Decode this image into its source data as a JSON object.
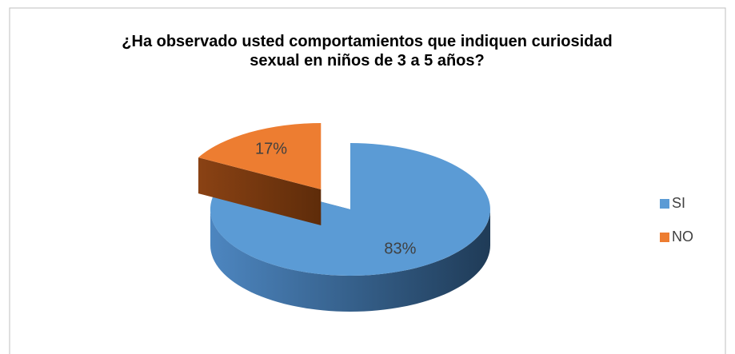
{
  "chart_data": {
    "type": "pie",
    "title": "¿Ha observado usted comportamientos que indiquen curiosidad sexual en niños de 3 a 5 años?",
    "categories": [
      "SI",
      "NO"
    ],
    "values": [
      83,
      17
    ],
    "value_labels": [
      "83%",
      "17%"
    ],
    "colors": [
      "#5b9bd5",
      "#ed7d31"
    ],
    "legend": "right"
  }
}
